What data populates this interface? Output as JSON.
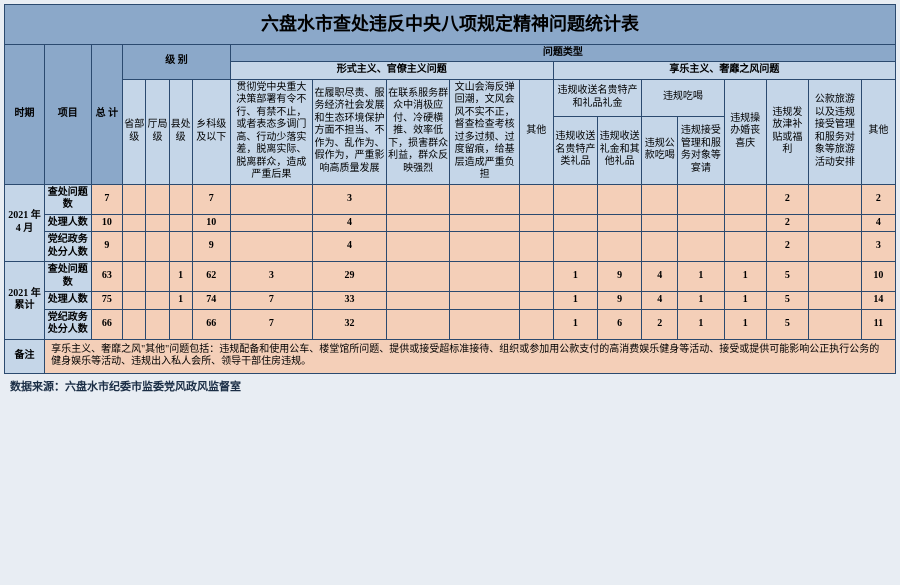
{
  "title": "六盘水市查处违反中央八项规定精神问题统计表",
  "header": {
    "period": "时期",
    "item": "项目",
    "total": "总 计",
    "level_group": "级 别",
    "problem_group": "问题类型",
    "formalism_group": "形式主义、官僚主义问题",
    "hedonism_group": "享乐主义、奢靡之风问题",
    "levels": [
      "省部级",
      "厅局级",
      "县处级",
      "乡科级及以下"
    ],
    "formalism_cols": [
      "贯彻党中央重大决策部署有令不行、有禁不止，或者表态多调门高、行动少落实差，脱离实际、脱离群众，造成严重后果",
      "在履职尽责、服务经济社会发展和生态环境保护方面不担当、不作为、乱作为、假作为，严重影响高质量发展",
      "在联系服务群众中消极应付、冷硬横推、效率低下，损害群众利益，群众反映强烈",
      "文山会海反弹回潮，文风会风不实不正，督查检查考核过多过频、过度留痕，给基层造成严重负担",
      "其他"
    ],
    "hedonism_groups": {
      "gift": "违规收送名贵特产和礼品礼金",
      "gift_sub": [
        "违规收送名贵特产类礼品",
        "违规收送礼金和其他礼品"
      ],
      "eat": "违规吃喝",
      "eat_sub": [
        "违规公款吃喝",
        "违规接受管理和服务对象等宴请"
      ],
      "wedding": "违规操办婚丧喜庆",
      "allowance": "违规发放津补贴或福利",
      "travel": "公款旅游以及违规接受管理和服务对象等旅游活动安排",
      "other": "其他"
    }
  },
  "periods": [
    {
      "label": "2021 年4 月",
      "rows": [
        {
          "name": "查处问题数",
          "vals": [
            "7",
            "",
            "",
            "",
            "7",
            "",
            "3",
            "",
            "",
            "",
            "",
            "",
            "",
            "",
            "",
            "2",
            "",
            "2"
          ]
        },
        {
          "name": "处理人数",
          "vals": [
            "10",
            "",
            "",
            "",
            "10",
            "",
            "4",
            "",
            "",
            "",
            "",
            "",
            "",
            "",
            "",
            "2",
            "",
            "4"
          ]
        },
        {
          "name": "党纪政务处分人数",
          "vals": [
            "9",
            "",
            "",
            "",
            "9",
            "",
            "4",
            "",
            "",
            "",
            "",
            "",
            "",
            "",
            "",
            "2",
            "",
            "3"
          ]
        }
      ]
    },
    {
      "label": "2021 年累计",
      "rows": [
        {
          "name": "查处问题数",
          "vals": [
            "63",
            "",
            "",
            "1",
            "62",
            "3",
            "29",
            "",
            "",
            "",
            "1",
            "9",
            "4",
            "1",
            "1",
            "5",
            "",
            "10"
          ]
        },
        {
          "name": "处理人数",
          "vals": [
            "75",
            "",
            "",
            "1",
            "74",
            "7",
            "33",
            "",
            "",
            "",
            "1",
            "9",
            "4",
            "1",
            "1",
            "5",
            "",
            "14"
          ]
        },
        {
          "name": "党纪政务处分人数",
          "vals": [
            "66",
            "",
            "",
            "",
            "66",
            "7",
            "32",
            "",
            "",
            "",
            "1",
            "6",
            "2",
            "1",
            "1",
            "5",
            "",
            "11"
          ]
        }
      ]
    }
  ],
  "note_label": "备注",
  "note_body": "享乐主义、奢靡之风\"其他\"问题包括：违规配备和使用公车、楼堂馆所问题、提供或接受超标准接待、组织或参加用公款支付的高消费娱乐健身等活动、接受或提供可能影响公正执行公务的健身娱乐等活动、违规出入私人会所、领导干部住房违规。",
  "source": "数据来源：六盘水市纪委市监委党风政风监督室",
  "colors": {
    "border": "#2b4a6f",
    "title_bg": "#8ba8c9",
    "header_bg": "#c5d6e8",
    "data_bg": "#f4cfb8",
    "page_bg": "#e8edf3"
  }
}
